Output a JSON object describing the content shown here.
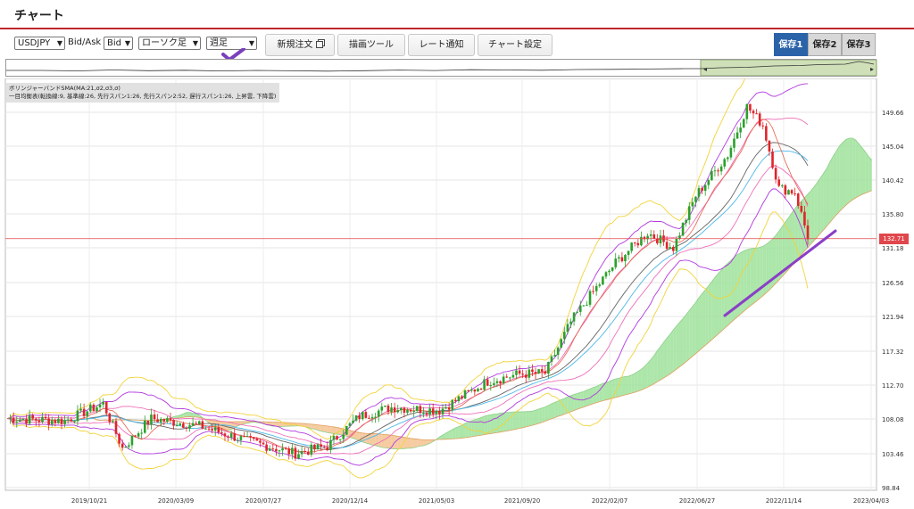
{
  "page_title": "チャート",
  "toolbar": {
    "symbol": "USDJPY",
    "bidask_label": "Bid/Ask",
    "bidask_value": "Bid",
    "chart_type": "ローソク足",
    "period": "週足",
    "buttons": {
      "new_order": "新規注文",
      "draw_tool": "描画ツール",
      "rate_alert": "レート通知",
      "chart_settings": "チャート設定"
    },
    "saves": [
      "保存1",
      "保存2",
      "保存3"
    ],
    "accent": "#2b63a9",
    "check_color": "#7b3fbe"
  },
  "legend": {
    "line1": "ボリンジャーバンドSMA(MA:21,σ2,σ3,σ)",
    "line2": "一目均衡表(転換線:9, 基準線:26, 先行スパン1:26, 先行スパン2:52, 遅行スパン1:26, 上昇雲, 下降雲)"
  },
  "chart_data": {
    "type": "candlestick",
    "instrument": "USDJPY",
    "current_price": "132.71",
    "y_ticks": [
      "149.66",
      "145.04",
      "140.42",
      "135.80",
      "131.18",
      "126.56",
      "121.94",
      "117.32",
      "112.70",
      "108.08",
      "103.46",
      "98.84"
    ],
    "x_ticks": [
      "2019/10/21",
      "2020/03/09",
      "2020/07/27",
      "2020/12/14",
      "2021/05/03",
      "2021/09/20",
      "2022/02/07",
      "2022/06/27",
      "2022/11/14",
      "2023/04/03"
    ],
    "ylim": [
      98.84,
      154.28
    ],
    "colors": {
      "up": "#2ca02c",
      "down": "#e0242a",
      "price_line": "#e0474c",
      "trendline": "#8a3fc7",
      "cloud_up": "#9ee29a",
      "cloud_down": "#f5c28f"
    }
  }
}
